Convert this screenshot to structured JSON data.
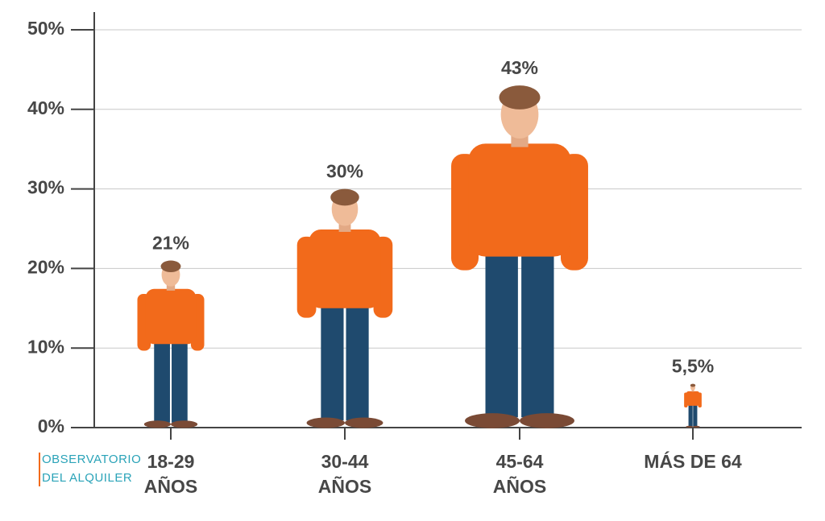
{
  "chart_data": {
    "type": "pictograph",
    "categories": [
      [
        "18-29",
        "AÑOS"
      ],
      [
        "30-44",
        "AÑOS"
      ],
      [
        "45-64",
        "AÑOS"
      ],
      [
        "MÁS DE 64"
      ]
    ],
    "values": [
      21,
      30,
      43,
      5.5
    ],
    "value_labels": [
      "21%",
      "30%",
      "43%",
      "5,5%"
    ],
    "ylim": [
      0,
      50
    ],
    "yticks": [
      {
        "value": 0,
        "label": "0%"
      },
      {
        "value": 10,
        "label": "10%"
      },
      {
        "value": 20,
        "label": "20%"
      },
      {
        "value": 30,
        "label": "30%"
      },
      {
        "value": 40,
        "label": "40%"
      },
      {
        "value": 50,
        "label": "50%"
      }
    ],
    "grid": true,
    "color": "#f26a1b"
  },
  "logo": [
    "OBSERVATORIO",
    "DEL ALQUILER"
  ]
}
